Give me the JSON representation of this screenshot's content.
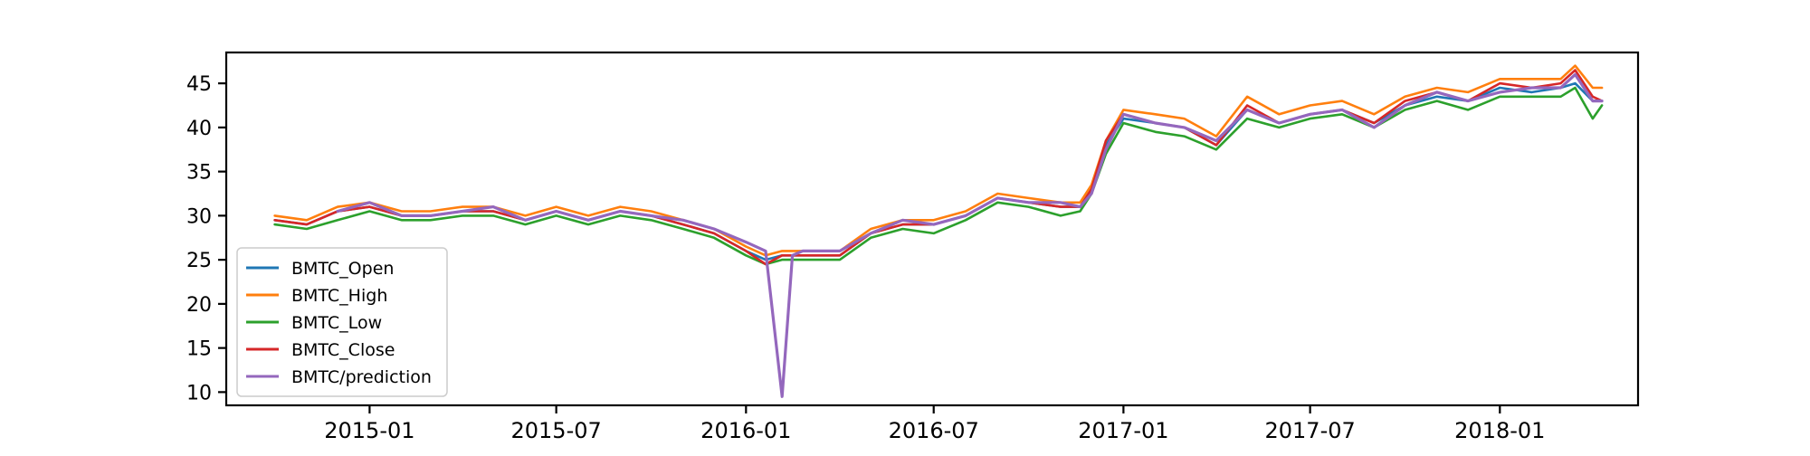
{
  "chart_data": {
    "type": "line",
    "title": "",
    "xlabel": "",
    "ylabel": "",
    "x_tick_labels": [
      "2015-01",
      "2015-07",
      "2016-01",
      "2016-07",
      "2017-01",
      "2017-07",
      "2018-01"
    ],
    "x_range": [
      "2014-08-15",
      "2018-05-15"
    ],
    "y_ticks": [
      10,
      15,
      20,
      25,
      30,
      35,
      40,
      45
    ],
    "ylim": [
      8.5,
      48.5
    ],
    "grid": false,
    "legend_position": "lower-left",
    "x": [
      "2014-10-01",
      "2014-11-01",
      "2014-12-01",
      "2015-01-01",
      "2015-02-01",
      "2015-03-01",
      "2015-04-01",
      "2015-05-01",
      "2015-06-01",
      "2015-07-01",
      "2015-08-01",
      "2015-09-01",
      "2015-10-01",
      "2015-11-01",
      "2015-12-01",
      "2016-01-01",
      "2016-01-20",
      "2016-02-05",
      "2016-02-15",
      "2016-02-25",
      "2016-03-01",
      "2016-04-01",
      "2016-05-01",
      "2016-06-01",
      "2016-07-01",
      "2016-08-01",
      "2016-09-01",
      "2016-10-01",
      "2016-11-01",
      "2016-11-20",
      "2016-12-01",
      "2016-12-15",
      "2017-01-01",
      "2017-02-01",
      "2017-03-01",
      "2017-04-01",
      "2017-05-01",
      "2017-06-01",
      "2017-07-01",
      "2017-08-01",
      "2017-09-01",
      "2017-10-01",
      "2017-11-01",
      "2017-12-01",
      "2018-01-01",
      "2018-02-01",
      "2018-03-01",
      "2018-03-15",
      "2018-04-01",
      "2018-04-10"
    ],
    "series": [
      {
        "name": "BMTC_Open",
        "color": "#1f77b4",
        "values": [
          29.5,
          29.0,
          30.5,
          31.0,
          30.0,
          30.0,
          30.5,
          30.5,
          29.5,
          30.5,
          29.5,
          30.5,
          30.0,
          29.0,
          28.0,
          26.0,
          25.0,
          25.5,
          25.5,
          25.5,
          25.5,
          25.5,
          28.0,
          29.0,
          29.0,
          30.0,
          32.0,
          31.5,
          31.0,
          31.0,
          33.0,
          38.0,
          41.0,
          40.5,
          40.0,
          38.0,
          42.0,
          40.5,
          41.5,
          42.0,
          40.5,
          42.5,
          43.5,
          43.0,
          44.5,
          44.0,
          44.5,
          45.0,
          43.0,
          43.0
        ]
      },
      {
        "name": "BMTC_High",
        "color": "#ff7f0e",
        "values": [
          30.0,
          29.5,
          31.0,
          31.5,
          30.5,
          30.5,
          31.0,
          31.0,
          30.0,
          31.0,
          30.0,
          31.0,
          30.5,
          29.5,
          28.5,
          26.5,
          25.5,
          26.0,
          26.0,
          26.0,
          26.0,
          26.0,
          28.5,
          29.5,
          29.5,
          30.5,
          32.5,
          32.0,
          31.5,
          31.5,
          33.5,
          38.5,
          42.0,
          41.5,
          41.0,
          39.0,
          43.5,
          41.5,
          42.5,
          43.0,
          41.5,
          43.5,
          44.5,
          44.0,
          45.5,
          45.5,
          45.5,
          47.0,
          44.5,
          44.5
        ]
      },
      {
        "name": "BMTC_Low",
        "color": "#2ca02c",
        "values": [
          29.0,
          28.5,
          29.5,
          30.5,
          29.5,
          29.5,
          30.0,
          30.0,
          29.0,
          30.0,
          29.0,
          30.0,
          29.5,
          28.5,
          27.5,
          25.5,
          24.5,
          25.0,
          25.0,
          25.0,
          25.0,
          25.0,
          27.5,
          28.5,
          28.0,
          29.5,
          31.5,
          31.0,
          30.0,
          30.5,
          32.5,
          37.0,
          40.5,
          39.5,
          39.0,
          37.5,
          41.0,
          40.0,
          41.0,
          41.5,
          40.0,
          42.0,
          43.0,
          42.0,
          43.5,
          43.5,
          43.5,
          44.5,
          41.0,
          42.5
        ]
      },
      {
        "name": "BMTC_Close",
        "color": "#d62728",
        "values": [
          29.5,
          29.0,
          30.5,
          31.0,
          30.0,
          30.0,
          30.5,
          30.5,
          29.5,
          30.5,
          29.5,
          30.5,
          30.0,
          29.0,
          28.0,
          26.0,
          24.5,
          25.5,
          25.5,
          25.5,
          25.5,
          25.5,
          28.0,
          29.0,
          29.0,
          30.0,
          32.0,
          31.5,
          31.0,
          31.0,
          33.0,
          38.5,
          41.5,
          40.5,
          40.0,
          38.0,
          42.5,
          40.5,
          41.5,
          42.0,
          40.5,
          43.0,
          44.0,
          43.0,
          45.0,
          44.5,
          45.0,
          46.5,
          43.5,
          43.0
        ]
      },
      {
        "name": "BMTC/prediction",
        "color": "#9467bd",
        "values": [
          null,
          null,
          30.5,
          31.5,
          30.0,
          30.0,
          30.5,
          31.0,
          29.5,
          30.5,
          29.5,
          30.5,
          30.0,
          29.5,
          28.5,
          27.0,
          26.0,
          9.5,
          25.5,
          26.0,
          26.0,
          26.0,
          28.0,
          29.5,
          29.0,
          30.0,
          32.0,
          31.5,
          31.5,
          31.0,
          32.5,
          37.5,
          41.5,
          40.5,
          40.0,
          38.5,
          42.0,
          40.5,
          41.5,
          42.0,
          40.0,
          42.5,
          44.0,
          43.0,
          44.0,
          44.5,
          44.5,
          46.0,
          43.0,
          43.0
        ]
      }
    ]
  }
}
